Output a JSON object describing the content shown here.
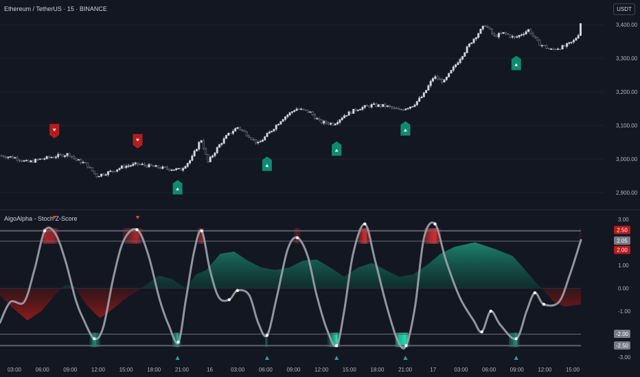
{
  "header": {
    "symbol_title": "Ethereum / TetherUS · 15 · BINANCE",
    "currency_button": "USDT"
  },
  "indicator": {
    "title": "AlgoAlpha - Stoch Z-Score"
  },
  "colors": {
    "background": "#131722",
    "bull": "#26a69a",
    "bear": "#b71c1c",
    "candle_up": "#d1d4dc",
    "oscillator": "#9e9e9e"
  },
  "chart_data": [
    {
      "type": "candlestick",
      "title": "Ethereum / TetherUS · 15 · BINANCE",
      "ylim": [
        2850,
        3450
      ],
      "y_ticks": [
        "3,400.00",
        "3,300.00",
        "3,200.00",
        "3,100.00",
        "3,000.00",
        "2,900.00"
      ],
      "price_path": [
        {
          "t": 0,
          "p": 3010
        },
        {
          "t": 20,
          "p": 3005
        },
        {
          "t": 40,
          "p": 2990
        },
        {
          "t": 60,
          "p": 3000
        },
        {
          "t": 80,
          "p": 3008
        },
        {
          "t": 100,
          "p": 3015
        },
        {
          "t": 110,
          "p": 2998
        },
        {
          "t": 125,
          "p": 2985
        },
        {
          "t": 140,
          "p": 2950
        },
        {
          "t": 160,
          "p": 2962
        },
        {
          "t": 180,
          "p": 2978
        },
        {
          "t": 200,
          "p": 2985
        },
        {
          "t": 220,
          "p": 2978
        },
        {
          "t": 240,
          "p": 2972
        },
        {
          "t": 262,
          "p": 2968
        },
        {
          "t": 278,
          "p": 3000
        },
        {
          "t": 292,
          "p": 3060
        },
        {
          "t": 302,
          "p": 2990
        },
        {
          "t": 318,
          "p": 3040
        },
        {
          "t": 330,
          "p": 3070
        },
        {
          "t": 345,
          "p": 3095
        },
        {
          "t": 358,
          "p": 3075
        },
        {
          "t": 375,
          "p": 3045
        },
        {
          "t": 392,
          "p": 3080
        },
        {
          "t": 410,
          "p": 3120
        },
        {
          "t": 430,
          "p": 3150
        },
        {
          "t": 450,
          "p": 3140
        },
        {
          "t": 465,
          "p": 3110
        },
        {
          "t": 485,
          "p": 3105
        },
        {
          "t": 500,
          "p": 3130
        },
        {
          "t": 520,
          "p": 3150
        },
        {
          "t": 540,
          "p": 3160
        },
        {
          "t": 560,
          "p": 3158
        },
        {
          "t": 580,
          "p": 3145
        },
        {
          "t": 600,
          "p": 3160
        },
        {
          "t": 615,
          "p": 3190
        },
        {
          "t": 630,
          "p": 3245
        },
        {
          "t": 645,
          "p": 3230
        },
        {
          "t": 665,
          "p": 3290
        },
        {
          "t": 685,
          "p": 3350
        },
        {
          "t": 705,
          "p": 3400
        },
        {
          "t": 718,
          "p": 3365
        },
        {
          "t": 732,
          "p": 3375
        },
        {
          "t": 748,
          "p": 3360
        },
        {
          "t": 768,
          "p": 3385
        },
        {
          "t": 782,
          "p": 3345
        },
        {
          "t": 800,
          "p": 3325
        },
        {
          "t": 820,
          "p": 3335
        },
        {
          "t": 833,
          "p": 3350
        },
        {
          "t": 840,
          "p": 3370
        },
        {
          "t": 844,
          "p": 3410
        }
      ],
      "signals": [
        {
          "t": 79,
          "price": 3080,
          "type": "sell"
        },
        {
          "t": 200,
          "price": 3050,
          "type": "sell"
        },
        {
          "t": 258,
          "price": 2915,
          "type": "buy"
        },
        {
          "t": 388,
          "price": 2985,
          "type": "buy"
        },
        {
          "t": 489,
          "price": 3030,
          "type": "buy"
        },
        {
          "t": 589,
          "price": 3090,
          "type": "buy"
        },
        {
          "t": 750,
          "price": 3285,
          "type": "buy"
        }
      ]
    },
    {
      "type": "line",
      "title": "AlgoAlpha - Stoch Z-Score",
      "ylim": [
        -3,
        3
      ],
      "y_ticks": [
        "3.00",
        "2.00",
        "1.00",
        "0.00",
        "-1.00",
        "-2.00",
        "-3.00"
      ],
      "levels": [
        {
          "label": "2.50",
          "value": 2.5,
          "color": "#b71c1c"
        },
        {
          "label": "2.05",
          "value": 2.05,
          "color": "#787b86"
        },
        {
          "label": "2.00",
          "value": 2.0,
          "color": "#b71c1c"
        },
        {
          "label": "-2.00",
          "value": -2.0,
          "color": "#787b86"
        },
        {
          "label": "-2.50",
          "value": -2.5,
          "color": "#787b86"
        }
      ],
      "x_ticks": [
        "03:00",
        "06:00",
        "09:00",
        "12:00",
        "15:00",
        "18:00",
        "21:00",
        "16",
        "03:00",
        "06:00",
        "09:00",
        "12:00",
        "15:00",
        "18:00",
        "21:00",
        "17",
        "03:00",
        "06:00",
        "09:00",
        "12:00",
        "15:00"
      ],
      "oscillator": [
        {
          "t": 0,
          "v": -1.5
        },
        {
          "t": 15,
          "v": -0.6
        },
        {
          "t": 35,
          "v": -0.6
        },
        {
          "t": 50,
          "v": 0.8
        },
        {
          "t": 65,
          "v": 2.5
        },
        {
          "t": 80,
          "v": 2.4
        },
        {
          "t": 95,
          "v": 1.2
        },
        {
          "t": 110,
          "v": -0.5
        },
        {
          "t": 122,
          "v": -1.4
        },
        {
          "t": 137,
          "v": -2.2
        },
        {
          "t": 150,
          "v": -1.7
        },
        {
          "t": 165,
          "v": 0.5
        },
        {
          "t": 180,
          "v": 2.1
        },
        {
          "t": 199,
          "v": 2.55
        },
        {
          "t": 215,
          "v": 1.5
        },
        {
          "t": 232,
          "v": -0.5
        },
        {
          "t": 245,
          "v": -1.6
        },
        {
          "t": 259,
          "v": -2.35
        },
        {
          "t": 270,
          "v": -0.5
        },
        {
          "t": 282,
          "v": 1.6
        },
        {
          "t": 293,
          "v": 2.5
        },
        {
          "t": 305,
          "v": 0.8
        },
        {
          "t": 318,
          "v": -0.4
        },
        {
          "t": 333,
          "v": -0.5
        },
        {
          "t": 345,
          "v": -0.1
        },
        {
          "t": 362,
          "v": -0.3
        },
        {
          "t": 375,
          "v": -1.5
        },
        {
          "t": 388,
          "v": -2.05
        },
        {
          "t": 402,
          "v": -0.4
        },
        {
          "t": 418,
          "v": 1.7
        },
        {
          "t": 432,
          "v": 2.2
        },
        {
          "t": 447,
          "v": 1.4
        },
        {
          "t": 460,
          "v": -0.3
        },
        {
          "t": 475,
          "v": -1.8
        },
        {
          "t": 489,
          "v": -2.5
        },
        {
          "t": 500,
          "v": -1.0
        },
        {
          "t": 513,
          "v": 1.5
        },
        {
          "t": 530,
          "v": 2.8
        },
        {
          "t": 545,
          "v": 1.2
        },
        {
          "t": 562,
          "v": -0.8
        },
        {
          "t": 578,
          "v": -2.3
        },
        {
          "t": 590,
          "v": -2.5
        },
        {
          "t": 603,
          "v": -0.8
        },
        {
          "t": 616,
          "v": 2.2
        },
        {
          "t": 632,
          "v": 2.8
        },
        {
          "t": 648,
          "v": 1.2
        },
        {
          "t": 668,
          "v": -0.4
        },
        {
          "t": 688,
          "v": -1.4
        },
        {
          "t": 700,
          "v": -1.9
        },
        {
          "t": 713,
          "v": -1.0
        },
        {
          "t": 727,
          "v": -1.6
        },
        {
          "t": 750,
          "v": -2.2
        },
        {
          "t": 765,
          "v": -1.0
        },
        {
          "t": 777,
          "v": -0.2
        },
        {
          "t": 790,
          "v": -0.7
        },
        {
          "t": 812,
          "v": -0.6
        },
        {
          "t": 828,
          "v": 0.6
        },
        {
          "t": 844,
          "v": 2.1
        }
      ],
      "area": [
        {
          "t": 0,
          "v": -0.3
        },
        {
          "t": 20,
          "v": -0.9
        },
        {
          "t": 40,
          "v": -1.4
        },
        {
          "t": 60,
          "v": -1.0
        },
        {
          "t": 80,
          "v": -0.3
        },
        {
          "t": 95,
          "v": 0.15
        },
        {
          "t": 108,
          "v": 0.1
        },
        {
          "t": 125,
          "v": -0.7
        },
        {
          "t": 145,
          "v": -1.3
        },
        {
          "t": 160,
          "v": -1.0
        },
        {
          "t": 180,
          "v": -0.5
        },
        {
          "t": 200,
          "v": -0.1
        },
        {
          "t": 215,
          "v": 0.2
        },
        {
          "t": 230,
          "v": 0.55
        },
        {
          "t": 250,
          "v": 0.4
        },
        {
          "t": 270,
          "v": 0.0
        },
        {
          "t": 285,
          "v": 0.6
        },
        {
          "t": 300,
          "v": 0.8
        },
        {
          "t": 320,
          "v": 1.5
        },
        {
          "t": 340,
          "v": 1.6
        },
        {
          "t": 360,
          "v": 1.2
        },
        {
          "t": 380,
          "v": 0.9
        },
        {
          "t": 400,
          "v": 0.8
        },
        {
          "t": 420,
          "v": 0.9
        },
        {
          "t": 440,
          "v": 1.2
        },
        {
          "t": 460,
          "v": 1.25
        },
        {
          "t": 480,
          "v": 0.9
        },
        {
          "t": 500,
          "v": 0.5
        },
        {
          "t": 520,
          "v": 0.9
        },
        {
          "t": 540,
          "v": 1.1
        },
        {
          "t": 560,
          "v": 0.8
        },
        {
          "t": 580,
          "v": 0.5
        },
        {
          "t": 600,
          "v": 0.6
        },
        {
          "t": 620,
          "v": 1.0
        },
        {
          "t": 640,
          "v": 1.5
        },
        {
          "t": 660,
          "v": 1.8
        },
        {
          "t": 690,
          "v": 2.0
        },
        {
          "t": 720,
          "v": 1.7
        },
        {
          "t": 745,
          "v": 1.4
        },
        {
          "t": 760,
          "v": 0.9
        },
        {
          "t": 780,
          "v": 0.2
        },
        {
          "t": 790,
          "v": -0.1
        },
        {
          "t": 805,
          "v": -0.6
        },
        {
          "t": 820,
          "v": -0.8
        },
        {
          "t": 844,
          "v": -0.7
        }
      ]
    }
  ]
}
